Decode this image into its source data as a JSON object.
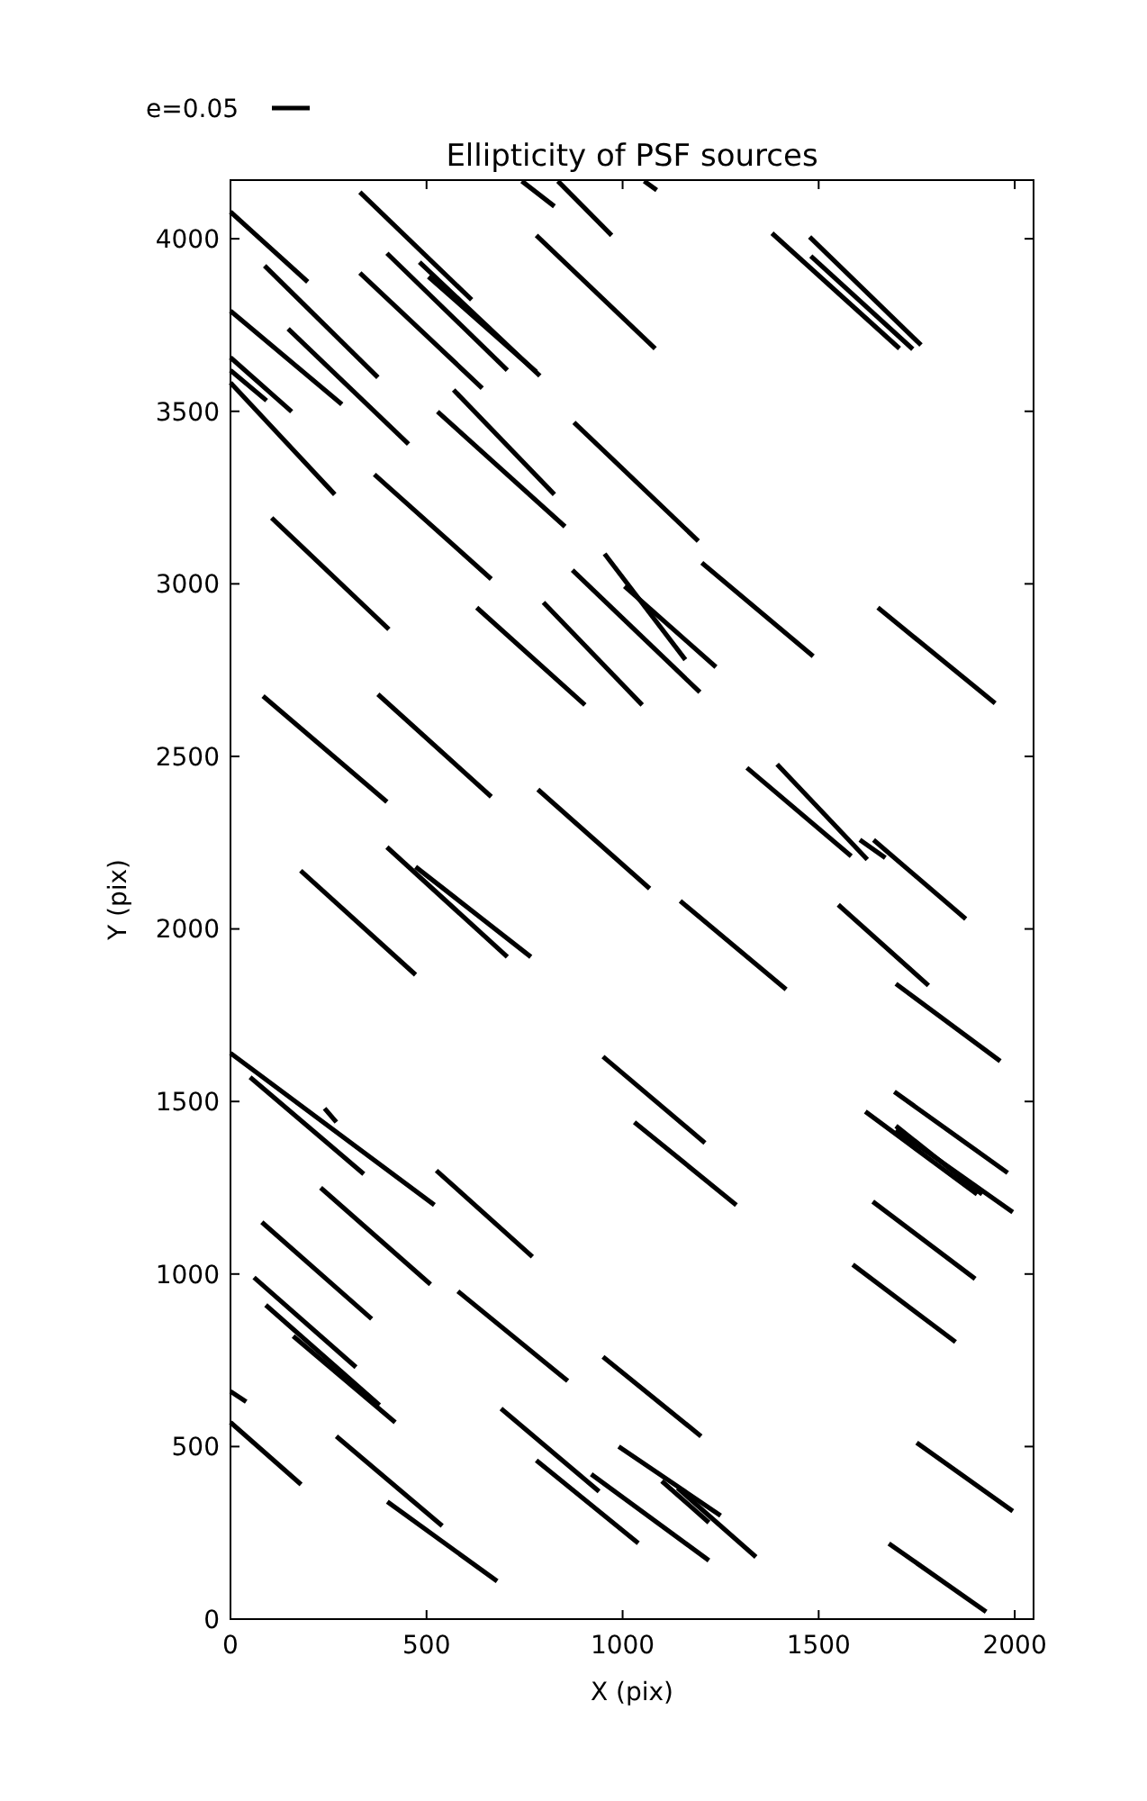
{
  "chart_data": {
    "type": "line",
    "title": "Ellipticity of PSF sources",
    "xlabel": "X (pix)",
    "ylabel": "Y (pix)",
    "annotations": [
      "e=0.05"
    ],
    "xlim": [
      0,
      2048
    ],
    "ylim": [
      0,
      4170
    ],
    "xticks": [
      0,
      500,
      1000,
      1500,
      2000
    ],
    "yticks": [
      0,
      500,
      1000,
      1500,
      2000,
      2500,
      3000,
      3500,
      4000
    ],
    "grid": false,
    "marker": "none",
    "line_style": "solid",
    "series": [
      {
        "color": "#000000",
        "x": [
          0,
          197
        ],
        "values": [
          4078,
          3875
        ]
      },
      {
        "color": "#000000",
        "x": [
          87,
          376
        ],
        "values": [
          3922,
          3598
        ]
      },
      {
        "color": "#000000",
        "x": [
          0,
          284
        ],
        "values": [
          3791,
          3520
        ]
      },
      {
        "color": "#000000",
        "x": [
          147,
          454
        ],
        "values": [
          3739,
          3405
        ]
      },
      {
        "color": "#000000",
        "x": [
          0,
          156
        ],
        "values": [
          3656,
          3499
        ]
      },
      {
        "color": "#000000",
        "x": [
          0,
          92
        ],
        "values": [
          3619,
          3531
        ]
      },
      {
        "color": "#000000",
        "x": [
          0,
          266
        ],
        "values": [
          3583,
          3259
        ]
      },
      {
        "color": "#000000",
        "x": [
          330,
          615
        ],
        "values": [
          4135,
          3823
        ]
      },
      {
        "color": "#000000",
        "x": [
          399,
          706
        ],
        "values": [
          3958,
          3619
        ]
      },
      {
        "color": "#000000",
        "x": [
          482,
          789
        ],
        "values": [
          3932,
          3603
        ]
      },
      {
        "color": "#000000",
        "x": [
          505,
          780
        ],
        "values": [
          3890,
          3614
        ]
      },
      {
        "color": "#000000",
        "x": [
          743,
          826
        ],
        "values": [
          4167,
          4094
        ]
      },
      {
        "color": "#000000",
        "x": [
          835,
          972
        ],
        "values": [
          4167,
          4010
        ]
      },
      {
        "color": "#000000",
        "x": [
          1055,
          1087
        ],
        "values": [
          4167,
          4141
        ]
      },
      {
        "color": "#000000",
        "x": [
          780,
          1083
        ],
        "values": [
          4010,
          3682
        ]
      },
      {
        "color": "#000000",
        "x": [
          330,
          642
        ],
        "values": [
          3901,
          3567
        ]
      },
      {
        "color": "#000000",
        "x": [
          569,
          826
        ],
        "values": [
          3562,
          3259
        ]
      },
      {
        "color": "#000000",
        "x": [
          528,
          853
        ],
        "values": [
          3499,
          3166
        ]
      },
      {
        "color": "#000000",
        "x": [
          876,
          1193
        ],
        "values": [
          3468,
          3124
        ]
      },
      {
        "color": "#000000",
        "x": [
          1381,
          1706
        ],
        "values": [
          4016,
          3682
        ]
      },
      {
        "color": "#000000",
        "x": [
          1477,
          1761
        ],
        "values": [
          4005,
          3692
        ]
      },
      {
        "color": "#000000",
        "x": [
          1480,
          1740
        ],
        "values": [
          3950,
          3680
        ]
      },
      {
        "color": "#000000",
        "x": [
          367,
          665
        ],
        "values": [
          3317,
          3014
        ]
      },
      {
        "color": "#000000",
        "x": [
          105,
          404
        ],
        "values": [
          3191,
          2868
        ]
      },
      {
        "color": "#000000",
        "x": [
          376,
          665
        ],
        "values": [
          2680,
          2383
        ]
      },
      {
        "color": "#000000",
        "x": [
          83,
          399
        ],
        "values": [
          2675,
          2368
        ]
      },
      {
        "color": "#000000",
        "x": [
          179,
          472
        ],
        "values": [
          2169,
          1867
        ]
      },
      {
        "color": "#000000",
        "x": [
          399,
          706
        ],
        "values": [
          2237,
          1919
        ]
      },
      {
        "color": "#000000",
        "x": [
          472,
          766
        ],
        "values": [
          2180,
          1919
        ]
      },
      {
        "color": "#000000",
        "x": [
          628,
          904
        ],
        "values": [
          2931,
          2649
        ]
      },
      {
        "color": "#000000",
        "x": [
          798,
          1050
        ],
        "values": [
          2946,
          2649
        ]
      },
      {
        "color": "#000000",
        "x": [
          872,
          1197
        ],
        "values": [
          3040,
          2686
        ]
      },
      {
        "color": "#000000",
        "x": [
          954,
          1160
        ],
        "values": [
          3087,
          2780
        ]
      },
      {
        "color": "#000000",
        "x": [
          1005,
          1238
        ],
        "values": [
          2993,
          2759
        ]
      },
      {
        "color": "#000000",
        "x": [
          1202,
          1486
        ],
        "values": [
          3061,
          2790
        ]
      },
      {
        "color": "#000000",
        "x": [
          784,
          1069
        ],
        "values": [
          2404,
          2117
        ]
      },
      {
        "color": "#000000",
        "x": [
          1317,
          1583
        ],
        "values": [
          2467,
          2211
        ]
      },
      {
        "color": "#000000",
        "x": [
          1394,
          1624
        ],
        "values": [
          2477,
          2201
        ]
      },
      {
        "color": "#000000",
        "x": [
          1147,
          1417
        ],
        "values": [
          2081,
          1825
        ]
      },
      {
        "color": "#000000",
        "x": [
          1651,
          1950
        ],
        "values": [
          2931,
          2654
        ]
      },
      {
        "color": "#000000",
        "x": [
          1605,
          1670
        ],
        "values": [
          2258,
          2206
        ]
      },
      {
        "color": "#000000",
        "x": [
          1640,
          1875
        ],
        "values": [
          2258,
          2029
        ]
      },
      {
        "color": "#000000",
        "x": [
          1550,
          1780
        ],
        "values": [
          2070,
          1836
        ]
      },
      {
        "color": "#000000",
        "x": [
          1697,
          1963
        ],
        "values": [
          1841,
          1617
        ]
      },
      {
        "color": "#000000",
        "x": [
          1693,
          1982
        ],
        "values": [
          1528,
          1293
        ]
      },
      {
        "color": "#000000",
        "x": [
          1619,
          1904
        ],
        "values": [
          1471,
          1231
        ]
      },
      {
        "color": "#000000",
        "x": [
          1697,
          1917
        ],
        "values": [
          1429,
          1231
        ]
      },
      {
        "color": "#000000",
        "x": [
          1697,
          1995
        ],
        "values": [
          1418,
          1179
        ]
      },
      {
        "color": "#000000",
        "x": [
          1638,
          1899
        ],
        "values": [
          1210,
          986
        ]
      },
      {
        "color": "#000000",
        "x": [
          1587,
          1849
        ],
        "values": [
          1027,
          803
        ]
      },
      {
        "color": "#000000",
        "x": [
          1750,
          1995
        ],
        "values": [
          511,
          313
        ]
      },
      {
        "color": "#000000",
        "x": [
          1679,
          1927
        ],
        "values": [
          219,
          21
        ]
      },
      {
        "color": "#000000",
        "x": [
          950,
          1210
        ],
        "values": [
          1630,
          1380
        ]
      },
      {
        "color": "#000000",
        "x": [
          1030,
          1290
        ],
        "values": [
          1440,
          1200
        ]
      },
      {
        "color": "#000000",
        "x": [
          950,
          1200
        ],
        "values": [
          760,
          530
        ]
      },
      {
        "color": "#000000",
        "x": [
          0,
          520
        ],
        "values": [
          1640,
          1200
        ]
      },
      {
        "color": "#000000",
        "x": [
          50,
          340
        ],
        "values": [
          1570,
          1290
        ]
      },
      {
        "color": "#000000",
        "x": [
          240,
          270
        ],
        "values": [
          1480,
          1440
        ]
      },
      {
        "color": "#000000",
        "x": [
          230,
          510
        ],
        "values": [
          1250,
          970
        ]
      },
      {
        "color": "#000000",
        "x": [
          80,
          360
        ],
        "values": [
          1150,
          870
        ]
      },
      {
        "color": "#000000",
        "x": [
          525,
          770
        ],
        "values": [
          1300,
          1050
        ]
      },
      {
        "color": "#000000",
        "x": [
          580,
          860
        ],
        "values": [
          950,
          690
        ]
      },
      {
        "color": "#000000",
        "x": [
          60,
          320
        ],
        "values": [
          990,
          730
        ]
      },
      {
        "color": "#000000",
        "x": [
          90,
          380
        ],
        "values": [
          910,
          620
        ]
      },
      {
        "color": "#000000",
        "x": [
          160,
          420
        ],
        "values": [
          820,
          570
        ]
      },
      {
        "color": "#000000",
        "x": [
          0,
          40
        ],
        "values": [
          660,
          630
        ]
      },
      {
        "color": "#000000",
        "x": [
          0,
          180
        ],
        "values": [
          570,
          390
        ]
      },
      {
        "color": "#000000",
        "x": [
          270,
          540
        ],
        "values": [
          530,
          270
        ]
      },
      {
        "color": "#000000",
        "x": [
          400,
          680
        ],
        "values": [
          340,
          110
        ]
      },
      {
        "color": "#000000",
        "x": [
          690,
          940
        ],
        "values": [
          610,
          370
        ]
      },
      {
        "color": "#000000",
        "x": [
          780,
          1040
        ],
        "values": [
          460,
          220
        ]
      },
      {
        "color": "#000000",
        "x": [
          920,
          1220
        ],
        "values": [
          420,
          170
        ]
      },
      {
        "color": "#000000",
        "x": [
          990,
          1250
        ],
        "values": [
          500,
          300
        ]
      },
      {
        "color": "#000000",
        "x": [
          1100,
          1220
        ],
        "values": [
          400,
          280
        ]
      },
      {
        "color": "#000000",
        "x": [
          1140,
          1340
        ],
        "values": [
          380,
          180
        ]
      }
    ]
  }
}
